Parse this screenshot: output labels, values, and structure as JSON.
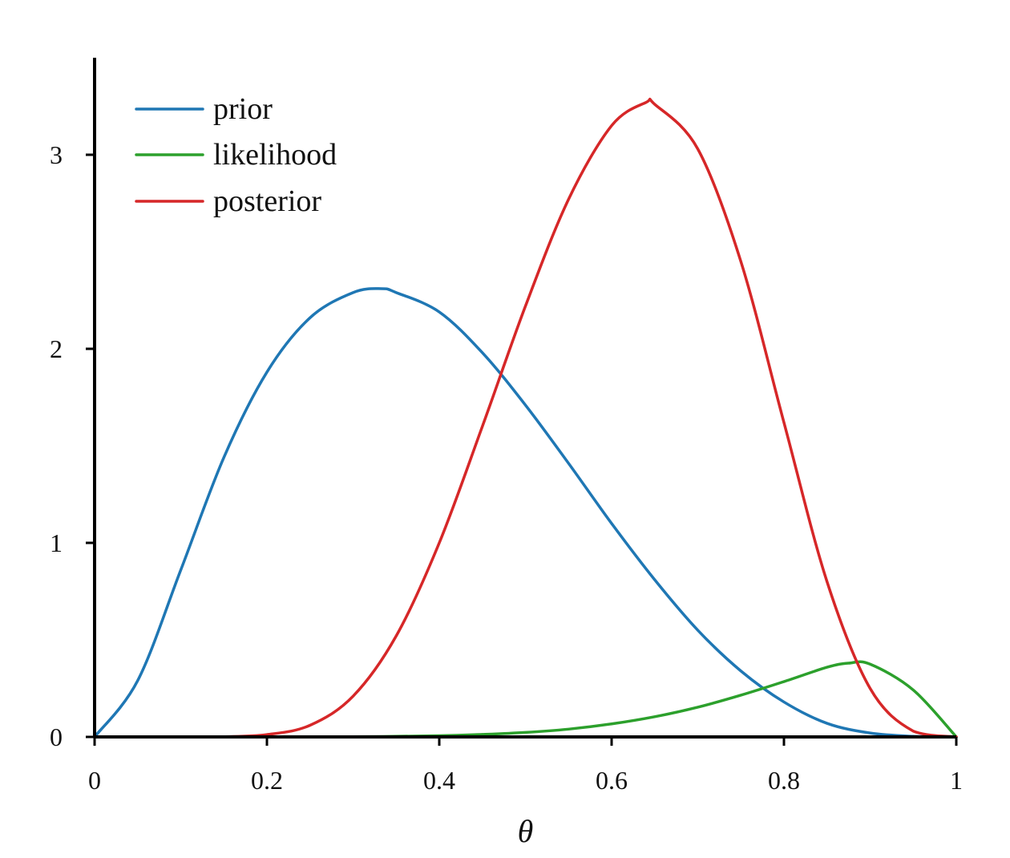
{
  "chart_data": {
    "type": "line",
    "title": "",
    "xlabel": "θ",
    "ylabel": "",
    "xlim": [
      0,
      1
    ],
    "ylim": [
      0,
      3.5
    ],
    "grid": false,
    "legend_position": "top-left",
    "x_ticks": [
      0,
      0.2,
      0.4,
      0.6,
      0.8,
      1
    ],
    "x_tick_labels": [
      "0",
      "0.2",
      "0.4",
      "0.6",
      "0.8",
      "1"
    ],
    "y_ticks": [
      0,
      1,
      2,
      3
    ],
    "y_tick_labels": [
      "0",
      "1",
      "2",
      "3"
    ],
    "series": [
      {
        "name": "prior",
        "color": "#1f77b4",
        "x": [
          0,
          0.05,
          0.1,
          0.15,
          0.2,
          0.25,
          0.3,
          0.333,
          0.35,
          0.4,
          0.45,
          0.5,
          0.55,
          0.6,
          0.65,
          0.7,
          0.75,
          0.8,
          0.85,
          0.9,
          0.95,
          1
        ],
        "y": [
          0,
          0.29,
          0.86,
          1.44,
          1.88,
          2.16,
          2.29,
          2.31,
          2.29,
          2.19,
          1.98,
          1.71,
          1.41,
          1.1,
          0.81,
          0.55,
          0.34,
          0.18,
          0.07,
          0.02,
          0.003,
          0
        ]
      },
      {
        "name": "likelihood",
        "color": "#2ca02c",
        "x": [
          0,
          0.1,
          0.2,
          0.3,
          0.4,
          0.45,
          0.5,
          0.55,
          0.6,
          0.65,
          0.7,
          0.75,
          0.8,
          0.85,
          0.875,
          0.9,
          0.95,
          1
        ],
        "y": [
          0,
          0,
          0,
          0.001,
          0.006,
          0.013,
          0.023,
          0.04,
          0.067,
          0.104,
          0.153,
          0.215,
          0.285,
          0.359,
          0.38,
          0.375,
          0.242,
          0
        ]
      },
      {
        "name": "posterior",
        "color": "#d62728",
        "x": [
          0,
          0.1,
          0.15,
          0.2,
          0.25,
          0.3,
          0.35,
          0.4,
          0.45,
          0.5,
          0.55,
          0.6,
          0.64,
          0.65,
          0.7,
          0.75,
          0.8,
          0.85,
          0.9,
          0.95,
          1
        ],
        "y": [
          0,
          0,
          0.001,
          0.012,
          0.06,
          0.21,
          0.52,
          1.0,
          1.6,
          2.22,
          2.77,
          3.15,
          3.27,
          3.26,
          3.03,
          2.45,
          1.62,
          0.8,
          0.25,
          0.03,
          0
        ]
      }
    ]
  }
}
